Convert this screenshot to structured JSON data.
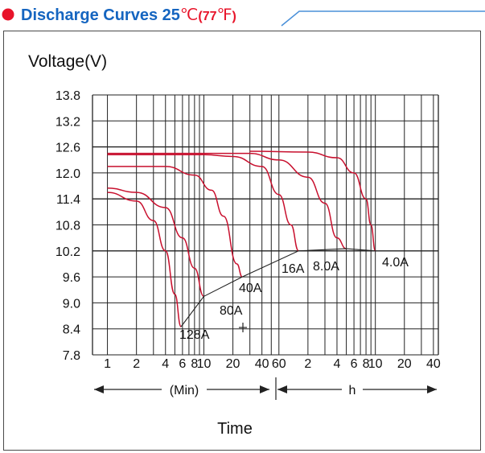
{
  "header": {
    "title": "Discharge Curves 25",
    "degree_c": "℃",
    "paren_open": "(",
    "f_value": "77",
    "degree_f": "℉",
    "paren_close": ")",
    "accent_color": "#e8142a",
    "title_color": "#1565c0"
  },
  "chart_data": {
    "type": "line",
    "ylabel": "Voltage(V)",
    "xlabel": "Time",
    "y_ticks": [
      "13.8",
      "13.2",
      "12.6",
      "12.0",
      "11.4",
      "10.8",
      "10.2",
      "9.6",
      "9.0",
      "8.4",
      "7.8"
    ],
    "ylim": [
      7.8,
      13.8
    ],
    "x_scale": "log",
    "x_unit_min": "(Min)",
    "x_unit_hour": "h",
    "x_tick_groups": [
      {
        "unit": "min",
        "ticks": [
          "1",
          "2",
          "4",
          "6",
          "8",
          "10",
          "20",
          "40",
          "60"
        ]
      },
      {
        "unit": "h",
        "ticks": [
          "2",
          "4",
          "6",
          "8",
          "10",
          "20",
          "40"
        ]
      }
    ],
    "grid": true,
    "line_color": "#c8102e",
    "series": [
      {
        "name": "128A",
        "points": [
          [
            1,
            11.55
          ],
          [
            2,
            11.35
          ],
          [
            3,
            10.9
          ],
          [
            4,
            10.2
          ],
          [
            5,
            9.2
          ],
          [
            5.8,
            8.45
          ]
        ]
      },
      {
        "name": "80A",
        "points": [
          [
            1,
            11.65
          ],
          [
            2,
            11.55
          ],
          [
            4,
            11.2
          ],
          [
            6,
            10.5
          ],
          [
            8,
            9.8
          ],
          [
            10,
            9.15
          ]
        ]
      },
      {
        "name": "40A",
        "points": [
          [
            1,
            12.15
          ],
          [
            4,
            12.15
          ],
          [
            8,
            11.95
          ],
          [
            12,
            11.6
          ],
          [
            16,
            11.0
          ],
          [
            22,
            9.9
          ],
          [
            25,
            9.6
          ]
        ]
      },
      {
        "name": "16A",
        "points": [
          [
            1,
            12.42
          ],
          [
            10,
            12.42
          ],
          [
            20,
            12.38
          ],
          [
            40,
            12.15
          ],
          [
            60,
            11.5
          ],
          [
            80,
            10.8
          ],
          [
            96,
            10.2
          ]
        ]
      },
      {
        "name": "8.0A",
        "points": [
          [
            1,
            12.45
          ],
          [
            30,
            12.45
          ],
          [
            60,
            12.3
          ],
          [
            120,
            11.9
          ],
          [
            180,
            11.3
          ],
          [
            240,
            10.5
          ],
          [
            300,
            10.25
          ]
        ]
      },
      {
        "name": "4.0A",
        "points": [
          [
            30,
            12.5
          ],
          [
            120,
            12.48
          ],
          [
            240,
            12.35
          ],
          [
            360,
            12.0
          ],
          [
            480,
            11.4
          ],
          [
            540,
            10.8
          ],
          [
            600,
            10.2
          ]
        ]
      }
    ],
    "end_point_line": [
      [
        5.8,
        8.45
      ],
      [
        10,
        9.15
      ],
      [
        25,
        9.6
      ],
      [
        96,
        10.2
      ],
      [
        300,
        10.25
      ],
      [
        600,
        10.2
      ]
    ],
    "labels": [
      "128A",
      "80A",
      "40A",
      "16A",
      "8.0A",
      "4.0A"
    ]
  }
}
